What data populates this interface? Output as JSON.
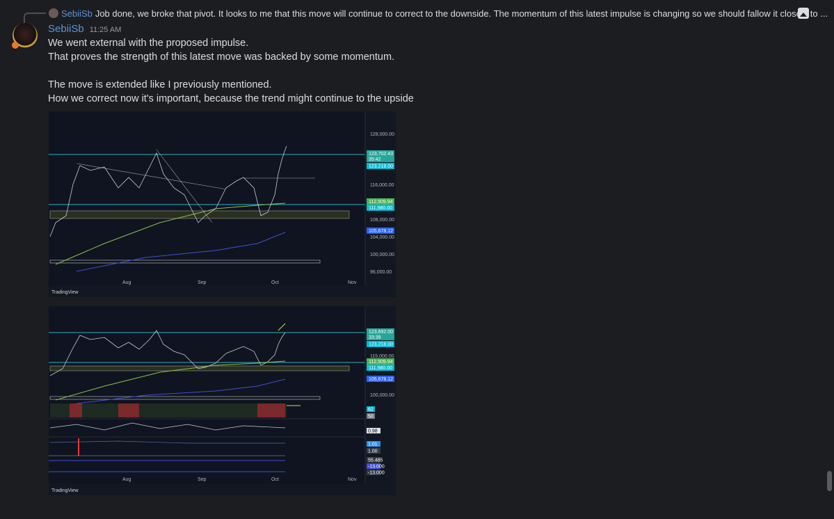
{
  "reply": {
    "author": "SebiiSb",
    "text": "Job done, we broke that pivot.   It looks to me that this move will continue to correct to the downside.   The momentum of this latest impulse is changing so we should fallow it closely to ..."
  },
  "message": {
    "author": "SebiiSb",
    "timestamp": "11:25 AM",
    "lines": [
      "We went external with the proposed impulse.",
      "That proves the strength of this latest move was backed by some momentum.",
      "",
      "The move is extended like I previously mentioned.",
      "How we correct now it's important, because the trend might continue to the upside"
    ]
  },
  "attachments": [
    {
      "watermark": "TradingView",
      "x_ticks": [
        "Aug",
        "Sep",
        "Oct",
        "Nov"
      ],
      "price_ticks": [
        "128,000.00",
        "116,000.00",
        "108,000.00",
        "104,000.00",
        "100,000.00",
        "96,000.00"
      ],
      "price_labels": [
        {
          "text": "123,702.43",
          "sub": "35:42",
          "color": "#26a69a"
        },
        {
          "text": "123,218.00",
          "color": "#00bcd4"
        },
        {
          "text": "112,509.94",
          "color": "#4caf50"
        },
        {
          "text": "111,980.00",
          "color": "#00bcd4"
        },
        {
          "text": "105,678.12",
          "color": "#2962ff"
        }
      ]
    },
    {
      "watermark": "TradingView",
      "x_ticks": [
        "Aug",
        "Sep",
        "Oct",
        "Nov"
      ],
      "price_ticks": [
        "115,000.00",
        "100,000.00"
      ],
      "price_labels": [
        {
          "text": "123,692.00",
          "sub": "33:39",
          "color": "#26a69a"
        },
        {
          "text": "123,218.00",
          "color": "#00bcd4"
        },
        {
          "text": "112,509.94",
          "color": "#4caf50"
        },
        {
          "text": "111,980.00",
          "color": "#00bcd4"
        },
        {
          "text": "105,678.12",
          "color": "#2962ff"
        }
      ],
      "indicator_labels": [
        {
          "text": "62",
          "color": "#00bcd4"
        },
        {
          "text": "50",
          "color": "#787b86"
        },
        {
          "text": "0.98",
          "color": "#e0e3eb"
        },
        {
          "text": "1.01",
          "color": "#2196f3"
        },
        {
          "text": "1.00",
          "color": "#363a45"
        },
        {
          "text": "55.485",
          "color": "#363a45"
        },
        {
          "text": "-13.000",
          "color": "#3f51d5"
        },
        {
          "text": "-13.000",
          "color": "#363a45"
        }
      ]
    }
  ]
}
